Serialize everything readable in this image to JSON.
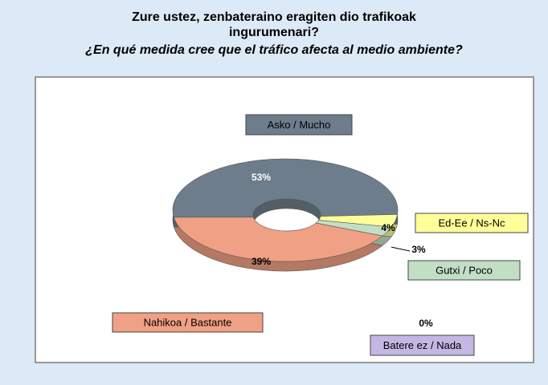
{
  "chart_data": {
    "type": "donut3d",
    "title": "Zure ustez, zenbateraino eragiten dio trafikoak ingurumenari?",
    "title_lines": [
      "Zure ustez, zenbateraino eragiten dio trafikoak",
      "ingurumenari?"
    ],
    "subtitle": "¿En qué medida cree que el tráfico afecta al medio ambiente?",
    "categories": [
      "Asko / Mucho",
      "Ed-Ee / Ns-Nc",
      "Gutxi / Poco",
      "Batere ez / Nada",
      "Nahikoa / Bastante"
    ],
    "values": [
      53,
      4,
      3,
      0,
      39
    ],
    "value_labels": [
      "53%",
      "4%",
      "3%",
      "0%",
      "39%"
    ],
    "colors": [
      "#6d7d8b",
      "#ffff99",
      "#c2dfc6",
      "#c4b7e3",
      "#f0a084"
    ]
  }
}
